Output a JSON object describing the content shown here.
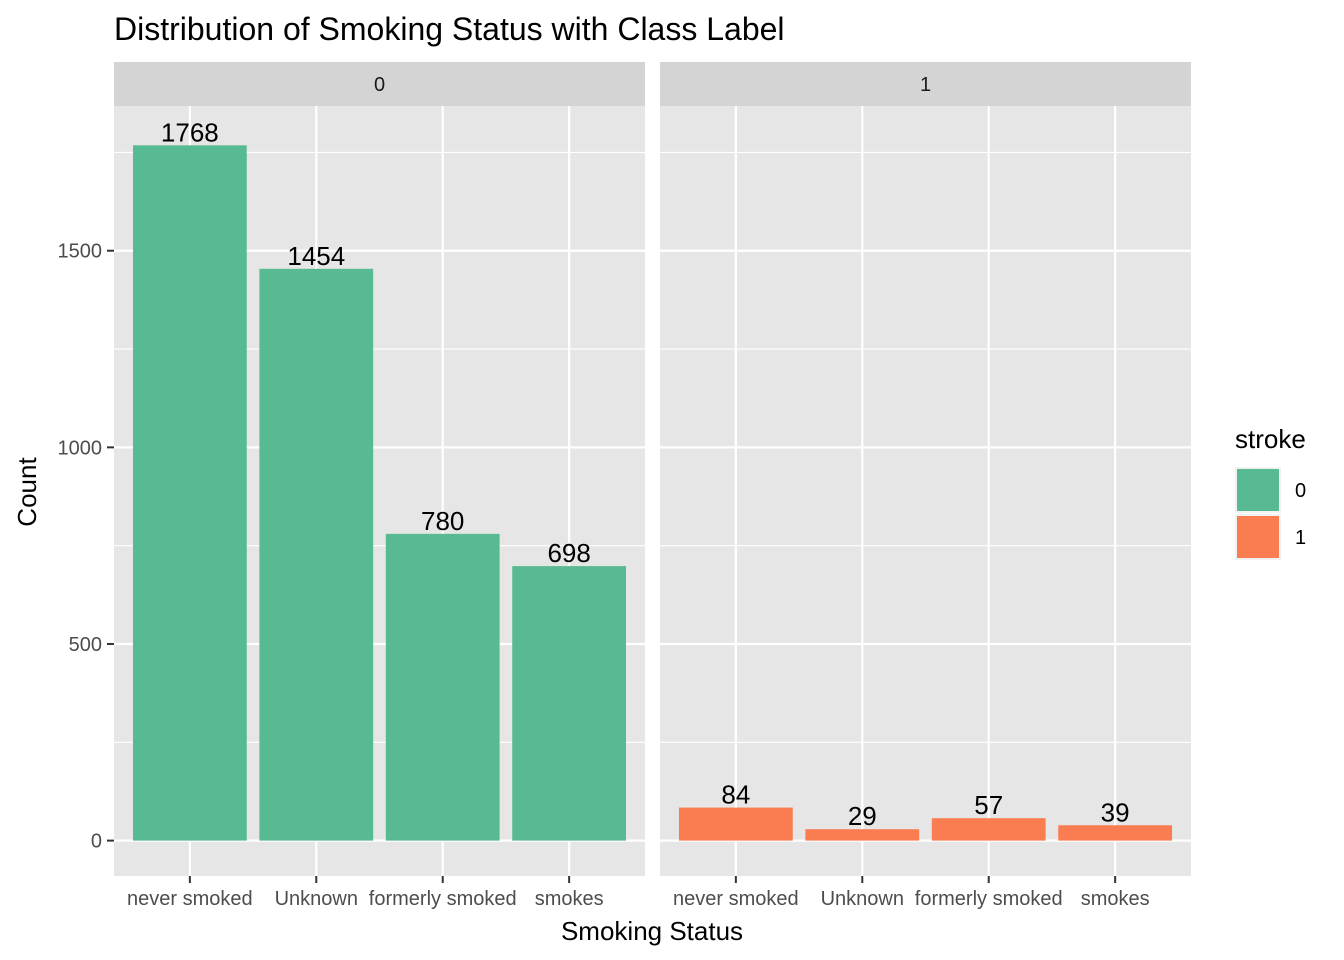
{
  "chart_data": {
    "type": "bar",
    "title": "Distribution of Smoking Status with Class Label",
    "xlabel": "Smoking Status",
    "ylabel": "Count",
    "ylim": [
      -90,
      1868
    ],
    "yticks": [
      0,
      500,
      1000,
      1500
    ],
    "grid": true,
    "categories": [
      "never smoked",
      "Unknown",
      "formerly smoked",
      "smokes"
    ],
    "facets": [
      {
        "label": "0",
        "stroke": "0",
        "values": [
          1768,
          1454,
          780,
          698
        ],
        "color": "#57BA92"
      },
      {
        "label": "1",
        "stroke": "1",
        "values": [
          84,
          29,
          57,
          39
        ],
        "color": "#FA7D51"
      }
    ],
    "legend": {
      "title": "stroke",
      "placement": "right",
      "items": [
        {
          "label": "0",
          "color": "#57BA92"
        },
        {
          "label": "1",
          "color": "#FA7D51"
        }
      ]
    },
    "colors": {
      "panel_bg": "#E6E6E6",
      "strip_bg": "#D4D4D4",
      "grid": "#FFFFFF"
    }
  }
}
